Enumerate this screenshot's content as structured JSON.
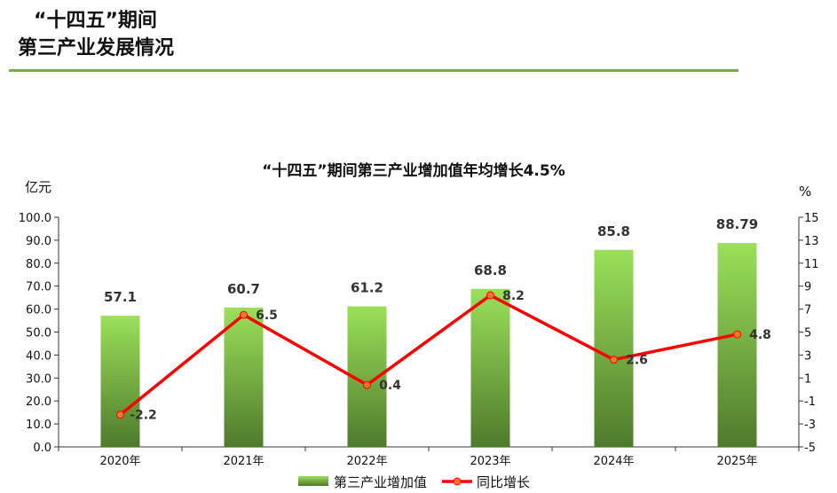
{
  "header": {
    "title_line1": "“十四五”期间",
    "title_line2": "第三产业发展情况"
  },
  "colors": {
    "rule": "#7aac4e",
    "bar_top": "#9be05a",
    "bar_bottom": "#4f7a2c",
    "line": "#ff0000",
    "marker": "#f07a28"
  },
  "chart_data": {
    "type": "bar",
    "title": "“十四五”期间第三产业增加值年均增长4.5%",
    "categories": [
      "2020年",
      "2021年",
      "2022年",
      "2023年",
      "2024年",
      "2025年"
    ],
    "series": [
      {
        "name": "第三产业增加值",
        "type": "bar",
        "axis": "left",
        "values": [
          57.1,
          60.7,
          61.2,
          68.8,
          85.8,
          88.79
        ],
        "labels": [
          "57.1",
          "60.7",
          "61.2",
          "68.8",
          "85.8",
          "88.79"
        ]
      },
      {
        "name": "同比增长",
        "type": "line",
        "axis": "right",
        "values": [
          -2.2,
          6.5,
          0.4,
          8.2,
          2.6,
          4.8
        ],
        "labels": [
          "-2.2",
          "6.5",
          "0.4",
          "8.2",
          "2.6",
          "4.8"
        ]
      }
    ],
    "y_left": {
      "unit": "亿元",
      "min": 0,
      "max": 100,
      "ticks": [
        "0.0",
        "10.0",
        "20.0",
        "30.0",
        "40.0",
        "50.0",
        "60.0",
        "70.0",
        "80.0",
        "90.0",
        "100.0"
      ]
    },
    "y_right": {
      "unit": "%",
      "min": -5,
      "max": 15,
      "ticks": [
        "-5",
        "-3",
        "-1",
        "1",
        "3",
        "5",
        "7",
        "9",
        "11",
        "13",
        "15"
      ]
    },
    "grid": false,
    "legend": "bottom"
  }
}
